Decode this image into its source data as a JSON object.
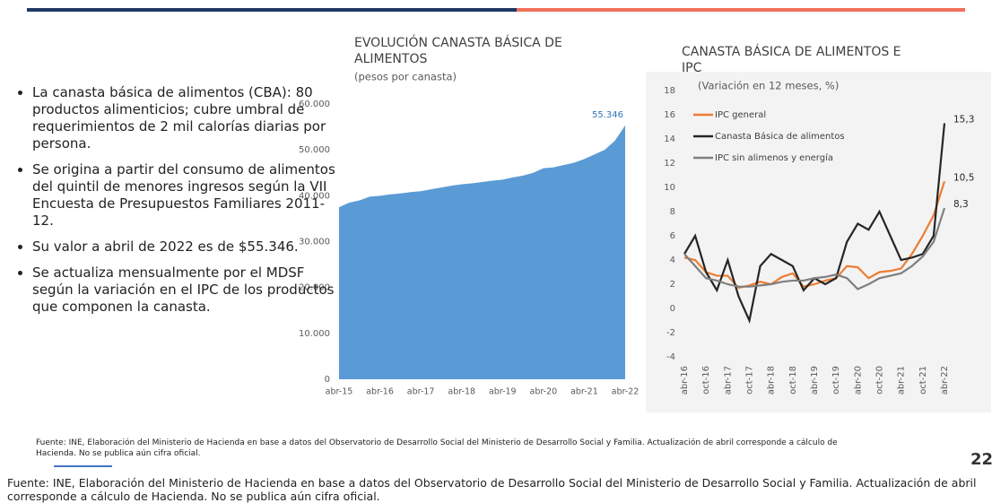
{
  "bullets": [
    "La canasta básica de alimentos (CBA): 80 productos alimenticios; cubre umbral de requerimientos de 2 mil calorías diarias por persona.",
    "Se origina a partir del consumo de alimentos del quintil de menores ingresos según la VII Encuesta de Presupuestos Familiares 2011-12.",
    "Su valor a abril de 2022 es de $55.346.",
    "Se actualiza mensualmente por el MDSF según la variación en el IPC de los productos que componen la canasta."
  ],
  "chart_data": [
    {
      "type": "area",
      "title": "EVOLUCIÓN CANASTA BÁSICA DE ALIMENTOS",
      "subtitle": "(pesos por canasta)",
      "categories": [
        "abr-15",
        null,
        null,
        null,
        "abr-16",
        null,
        null,
        null,
        "abr-17",
        null,
        null,
        null,
        "abr-18",
        null,
        null,
        null,
        "abr-19",
        null,
        null,
        null,
        "abr-20",
        null,
        null,
        null,
        "abr-21",
        null,
        null,
        null,
        "abr-22"
      ],
      "values": [
        37500,
        38500,
        39000,
        39800,
        40000,
        40300,
        40500,
        40800,
        41000,
        41400,
        41800,
        42200,
        42500,
        42700,
        43000,
        43300,
        43500,
        44000,
        44400,
        45000,
        46000,
        46200,
        46700,
        47200,
        48000,
        49000,
        50000,
        52000,
        55346
      ],
      "value_labels": [
        null,
        null,
        null,
        null,
        null,
        null,
        null,
        null,
        null,
        null,
        null,
        null,
        null,
        null,
        null,
        null,
        null,
        null,
        null,
        null,
        null,
        null,
        null,
        null,
        null,
        null,
        null,
        null,
        "55.346"
      ],
      "color": "#5b9bd5",
      "ylim": [
        0,
        60000
      ],
      "yticks": [
        0,
        {
          "value": 10000,
          "label": "10.000"
        },
        {
          "value": 20000,
          "label": "20.000"
        },
        {
          "value": 30000,
          "label": "30.000"
        },
        {
          "value": 40000,
          "label": "40.000"
        },
        {
          "value": 50000,
          "label": "50.000"
        },
        {
          "value": 60000,
          "label": "60.000"
        }
      ],
      "grid": false
    },
    {
      "type": "line",
      "title": "CANASTA BÁSICA DE ALIMENTOS E IPC",
      "subtitle": "(Variación en 12 meses, %)",
      "categories": [
        "abr-16",
        null,
        "oct-16",
        null,
        "abr-17",
        null,
        "oct-17",
        null,
        "abr-18",
        null,
        "oct-18",
        null,
        "abr-19",
        null,
        "oct-19",
        null,
        "abr-20",
        null,
        "oct-20",
        null,
        "abr-21",
        null,
        "oct-21",
        null,
        "abr-22"
      ],
      "series": [
        {
          "name": "IPC general",
          "color": "#ed7d31",
          "values": [
            4.2,
            4.0,
            3.0,
            2.7,
            2.7,
            1.7,
            1.9,
            2.2,
            2.0,
            2.6,
            2.9,
            1.8,
            2.0,
            2.3,
            2.5,
            3.5,
            3.4,
            2.5,
            3.0,
            3.1,
            3.3,
            4.5,
            6.0,
            7.7,
            10.5
          ],
          "value_labels": [
            null,
            null,
            null,
            null,
            null,
            null,
            null,
            null,
            null,
            null,
            null,
            null,
            null,
            null,
            null,
            null,
            null,
            null,
            null,
            null,
            null,
            null,
            null,
            null,
            "10,5"
          ]
        },
        {
          "name": "Canasta Básica de alimentos",
          "color": "#262626",
          "values": [
            4.5,
            6.0,
            3.0,
            1.5,
            4.0,
            1.0,
            -1.0,
            3.5,
            4.5,
            4.0,
            3.5,
            1.5,
            2.5,
            2.0,
            2.5,
            5.5,
            7.0,
            6.5,
            8.0,
            6.0,
            4.0,
            4.2,
            4.5,
            6.0,
            15.3
          ],
          "value_labels": [
            null,
            null,
            null,
            null,
            null,
            null,
            null,
            null,
            null,
            null,
            null,
            null,
            null,
            null,
            null,
            null,
            null,
            null,
            null,
            null,
            null,
            null,
            null,
            null,
            "15,3"
          ]
        },
        {
          "name": "IPC sin alimenos y energía",
          "color": "#7f7f7f",
          "values": [
            4.5,
            3.5,
            2.5,
            2.3,
            2.0,
            1.8,
            1.8,
            1.9,
            2.0,
            2.2,
            2.3,
            2.3,
            2.5,
            2.6,
            2.8,
            2.5,
            1.6,
            2.0,
            2.5,
            2.7,
            2.9,
            3.5,
            4.3,
            5.5,
            8.3
          ],
          "value_labels": [
            null,
            null,
            null,
            null,
            null,
            null,
            null,
            null,
            null,
            null,
            null,
            null,
            null,
            null,
            null,
            null,
            null,
            null,
            null,
            null,
            null,
            null,
            null,
            null,
            "8,3"
          ]
        }
      ],
      "ylim": [
        -4,
        18
      ],
      "yticks": [
        -4,
        -2,
        0,
        2,
        4,
        6,
        8,
        10,
        12,
        14,
        16,
        18
      ],
      "grid": false,
      "legend": "upper-left"
    }
  ],
  "source": "Fuente: INE, Elaboración del Ministerio de Hacienda en base a datos del Observatorio de Desarrollo Social del Ministerio de Desarrollo Social y Familia. Actualización de abril corresponde a cálculo de Hacienda. No se publica aún cifra oficial.",
  "page_number": "22"
}
